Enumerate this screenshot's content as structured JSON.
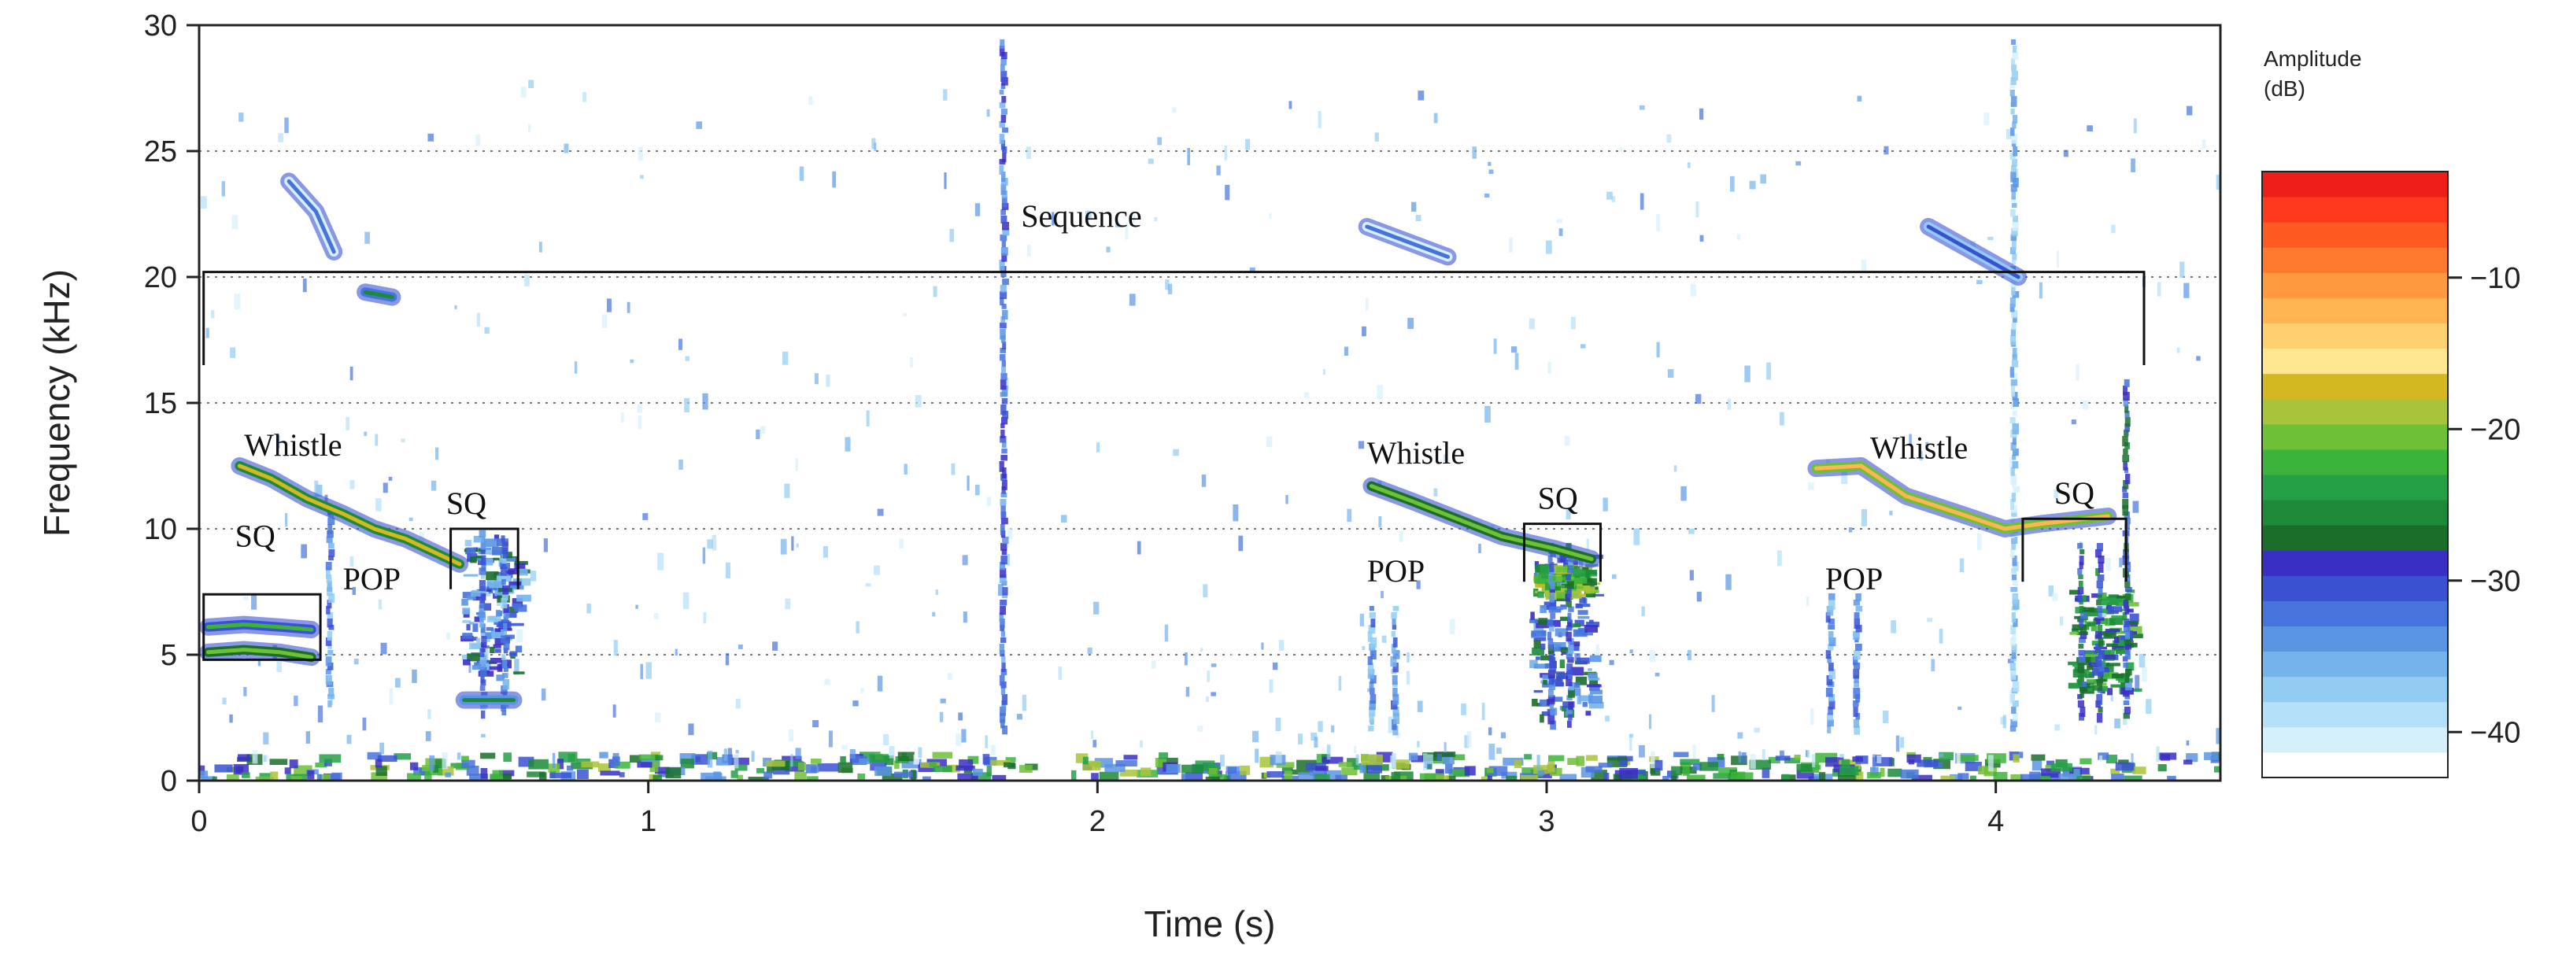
{
  "chart_data": {
    "type": "heatmap",
    "title": "",
    "xlabel": "Time (s)",
    "ylabel": "Frequency (kHz)",
    "xlim": [
      0,
      4.5
    ],
    "ylim": [
      0,
      30
    ],
    "x_ticks": [
      0,
      1,
      2,
      3,
      4
    ],
    "y_ticks": [
      0,
      5,
      10,
      15,
      20,
      25,
      30
    ],
    "grid": "horizontal dotted lines at each y tick",
    "colorbar": {
      "title_line1": "Amplitude",
      "title_line2": "(dB)",
      "range": [
        -43,
        -3
      ],
      "ticks": [
        -10,
        -20,
        -30,
        -40
      ],
      "tick_labels": [
        "−10",
        "−20",
        "−30",
        "−40"
      ],
      "colors": [
        "#ffffff",
        "#d6f0fb",
        "#b4e0f8",
        "#92ccf2",
        "#74b3ec",
        "#5a95e4",
        "#4673dc",
        "#3a52d2",
        "#3a2fc4",
        "#1a6e2a",
        "#1c8a38",
        "#25a046",
        "#3cb43a",
        "#6ec036",
        "#a8c43a",
        "#d4b822",
        "#ffe690",
        "#ffd070",
        "#ffb552",
        "#ff9a3e",
        "#ff7a2e",
        "#ff5a22",
        "#ff3a1c",
        "#ee1e18"
      ]
    },
    "annotations": [
      {
        "text": "Sequence",
        "x": 1.83,
        "y": 22.0
      },
      {
        "text": "Whistle",
        "x": 0.1,
        "y": 12.9
      },
      {
        "text": "SQ",
        "x": 0.08,
        "y": 9.3
      },
      {
        "text": "POP",
        "x": 0.32,
        "y": 7.6
      },
      {
        "text": "SQ",
        "x": 0.55,
        "y": 10.6
      },
      {
        "text": "Whistle",
        "x": 2.6,
        "y": 12.6
      },
      {
        "text": "SQ",
        "x": 2.98,
        "y": 10.8
      },
      {
        "text": "POP",
        "x": 2.6,
        "y": 7.9
      },
      {
        "text": "Whistle",
        "x": 3.72,
        "y": 12.8
      },
      {
        "text": "SQ",
        "x": 4.13,
        "y": 11.0
      },
      {
        "text": "POP",
        "x": 3.62,
        "y": 7.6
      }
    ],
    "brackets": [
      {
        "label": "Sequence",
        "x0": 0.01,
        "x1": 4.33,
        "y_top": 20.2,
        "y_bottom": 16.5
      },
      {
        "label": "SQ",
        "x0": 0.01,
        "x1": 0.27,
        "y_top": 7.4,
        "y_bottom": 4.8,
        "closed": true
      },
      {
        "label": "SQ",
        "x0": 0.56,
        "x1": 0.71,
        "y_top": 10.0,
        "y_bottom": 7.6
      },
      {
        "label": "SQ",
        "x0": 2.95,
        "x1": 3.12,
        "y_top": 10.2,
        "y_bottom": 7.9
      },
      {
        "label": "SQ",
        "x0": 4.06,
        "x1": 4.29,
        "y_top": 10.4,
        "y_bottom": 7.9
      }
    ],
    "series": [
      {
        "kind": "whistle",
        "level": -18,
        "points": [
          [
            0.09,
            12.5
          ],
          [
            0.16,
            12.0
          ],
          [
            0.24,
            11.2
          ],
          [
            0.32,
            10.6
          ],
          [
            0.39,
            10.0
          ],
          [
            0.46,
            9.6
          ],
          [
            0.52,
            9.1
          ],
          [
            0.58,
            8.6
          ]
        ]
      },
      {
        "kind": "whistle",
        "level": -20,
        "points": [
          [
            2.61,
            11.7
          ],
          [
            2.7,
            11.1
          ],
          [
            2.8,
            10.4
          ],
          [
            2.9,
            9.7
          ],
          [
            3.02,
            9.2
          ],
          [
            3.1,
            8.8
          ]
        ]
      },
      {
        "kind": "whistle",
        "level": -12,
        "points": [
          [
            3.6,
            12.4
          ],
          [
            3.7,
            12.5
          ],
          [
            3.8,
            11.3
          ],
          [
            3.92,
            10.6
          ],
          [
            4.02,
            10.0
          ],
          [
            4.1,
            10.2
          ],
          [
            4.25,
            10.5
          ]
        ]
      },
      {
        "kind": "whistle",
        "level": -25,
        "points": [
          [
            0.37,
            19.4
          ],
          [
            0.43,
            19.2
          ]
        ]
      },
      {
        "kind": "whistle",
        "level": -33,
        "points": [
          [
            0.2,
            23.8
          ],
          [
            0.26,
            22.6
          ],
          [
            0.3,
            21.0
          ]
        ]
      },
      {
        "kind": "whistle",
        "level": -33,
        "points": [
          [
            2.6,
            22.0
          ],
          [
            2.78,
            20.8
          ]
        ]
      },
      {
        "kind": "whistle",
        "level": -30,
        "points": [
          [
            3.85,
            22.0
          ],
          [
            3.95,
            21.0
          ],
          [
            4.05,
            20.0
          ]
        ]
      },
      {
        "kind": "harmonic",
        "level": -22,
        "points": [
          [
            0.02,
            6.1
          ],
          [
            0.1,
            6.2
          ],
          [
            0.18,
            6.1
          ],
          [
            0.25,
            6.0
          ]
        ]
      },
      {
        "kind": "harmonic",
        "level": -20,
        "points": [
          [
            0.02,
            5.1
          ],
          [
            0.1,
            5.2
          ],
          [
            0.18,
            5.1
          ],
          [
            0.25,
            4.9
          ]
        ]
      },
      {
        "kind": "harmonic",
        "level": -26,
        "points": [
          [
            0.59,
            3.2
          ],
          [
            0.7,
            3.2
          ]
        ]
      }
    ],
    "vertical_streaks": [
      {
        "x": 1.79,
        "y0": 2.0,
        "y1": 29.5,
        "level": -32
      },
      {
        "x": 0.29,
        "y0": 3.0,
        "y1": 11.0,
        "level": -34
      },
      {
        "x": 0.63,
        "y0": 2.6,
        "y1": 10.0,
        "level": -33
      },
      {
        "x": 0.68,
        "y0": 2.6,
        "y1": 9.8,
        "level": -33
      },
      {
        "x": 2.61,
        "y0": 2.0,
        "y1": 7.0,
        "level": -34
      },
      {
        "x": 2.66,
        "y0": 2.0,
        "y1": 7.0,
        "level": -34
      },
      {
        "x": 3.01,
        "y0": 2.2,
        "y1": 9.5,
        "level": -31
      },
      {
        "x": 3.05,
        "y0": 2.2,
        "y1": 9.5,
        "level": -31
      },
      {
        "x": 3.63,
        "y0": 2.0,
        "y1": 7.5,
        "level": -34
      },
      {
        "x": 3.69,
        "y0": 2.0,
        "y1": 7.5,
        "level": -34
      },
      {
        "x": 4.19,
        "y0": 2.5,
        "y1": 9.5,
        "level": -29
      },
      {
        "x": 4.23,
        "y0": 2.5,
        "y1": 9.5,
        "level": -29
      },
      {
        "x": 4.29,
        "y0": 2.5,
        "y1": 16.0,
        "level": -30
      },
      {
        "x": 4.04,
        "y0": 2.0,
        "y1": 29.5,
        "level": -37
      }
    ],
    "blobs": [
      {
        "x0": 2.96,
        "x1": 3.1,
        "y0": 2.4,
        "y1": 9.0,
        "level": -31
      },
      {
        "x0": 4.16,
        "x1": 4.3,
        "y0": 3.6,
        "y1": 7.6,
        "level": -26
      },
      {
        "x0": 0.58,
        "x1": 0.71,
        "y0": 4.2,
        "y1": 9.8,
        "level": -32
      },
      {
        "x0": 2.97,
        "x1": 3.09,
        "y0": 7.4,
        "y1": 8.6,
        "level": -22
      }
    ],
    "noise_band": {
      "y0": 0.0,
      "y1": 1.0,
      "level": -28
    }
  }
}
